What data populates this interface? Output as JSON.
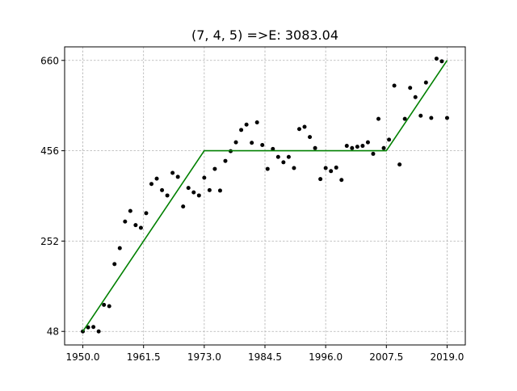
{
  "chart_data": {
    "type": "scatter",
    "title": "(7, 4, 5) =>E: 3083.04",
    "xlabel": "",
    "ylabel": "",
    "xlim": [
      1946.55,
      2022.45
    ],
    "ylim": [
      17.4,
      690.6
    ],
    "x_ticks": [
      1950.0,
      1961.5,
      1973.0,
      1984.5,
      1996.0,
      2007.5,
      2019.0
    ],
    "x_tick_labels": [
      "1950.0",
      "1961.5",
      "1973.0",
      "1984.5",
      "1996.0",
      "2007.5",
      "2019.0"
    ],
    "y_ticks": [
      48,
      252,
      456,
      660
    ],
    "y_tick_labels": [
      "48",
      "252",
      "456",
      "660"
    ],
    "grid": true,
    "series": [
      {
        "kind": "scatter",
        "color": "#000000",
        "x": [
          1950,
          1951,
          1952,
          1953,
          1954,
          1955,
          1956,
          1957,
          1958,
          1959,
          1960,
          1961,
          1962,
          1963,
          1964,
          1965,
          1966,
          1967,
          1968,
          1969,
          1970,
          1971,
          1972,
          1973,
          1974,
          1975,
          1976,
          1977,
          1978,
          1979,
          1980,
          1981,
          1982,
          1983,
          1984,
          1985,
          1986,
          1987,
          1988,
          1989,
          1990,
          1991,
          1992,
          1993,
          1994,
          1995,
          1996,
          1997,
          1998,
          1999,
          2000,
          2001,
          2002,
          2003,
          2004,
          2005,
          2006,
          2007,
          2008,
          2009,
          2010,
          2011,
          2012,
          2013,
          2014,
          2015,
          2016,
          2017,
          2018,
          2019
        ],
        "y": [
          48,
          57,
          58,
          48,
          108,
          105,
          200,
          236,
          296,
          320,
          288,
          282,
          315,
          381,
          393,
          367,
          355,
          406,
          397,
          330,
          372,
          362,
          355,
          395,
          367,
          415,
          366,
          433,
          455,
          475,
          503,
          515,
          474,
          520,
          469,
          415,
          460,
          442,
          430,
          442,
          417,
          505,
          510,
          487,
          462,
          392,
          417,
          410,
          418,
          390,
          467,
          462,
          465,
          467,
          475,
          449,
          528,
          462,
          481,
          603,
          425,
          528,
          598,
          577,
          535,
          610,
          530,
          664,
          658,
          530
        ],
        "size": 2.5
      },
      {
        "kind": "line",
        "color": "#008000",
        "x": [
          1950,
          1973,
          2007.5,
          2019
        ],
        "y": [
          48,
          456,
          456,
          660
        ]
      }
    ]
  }
}
